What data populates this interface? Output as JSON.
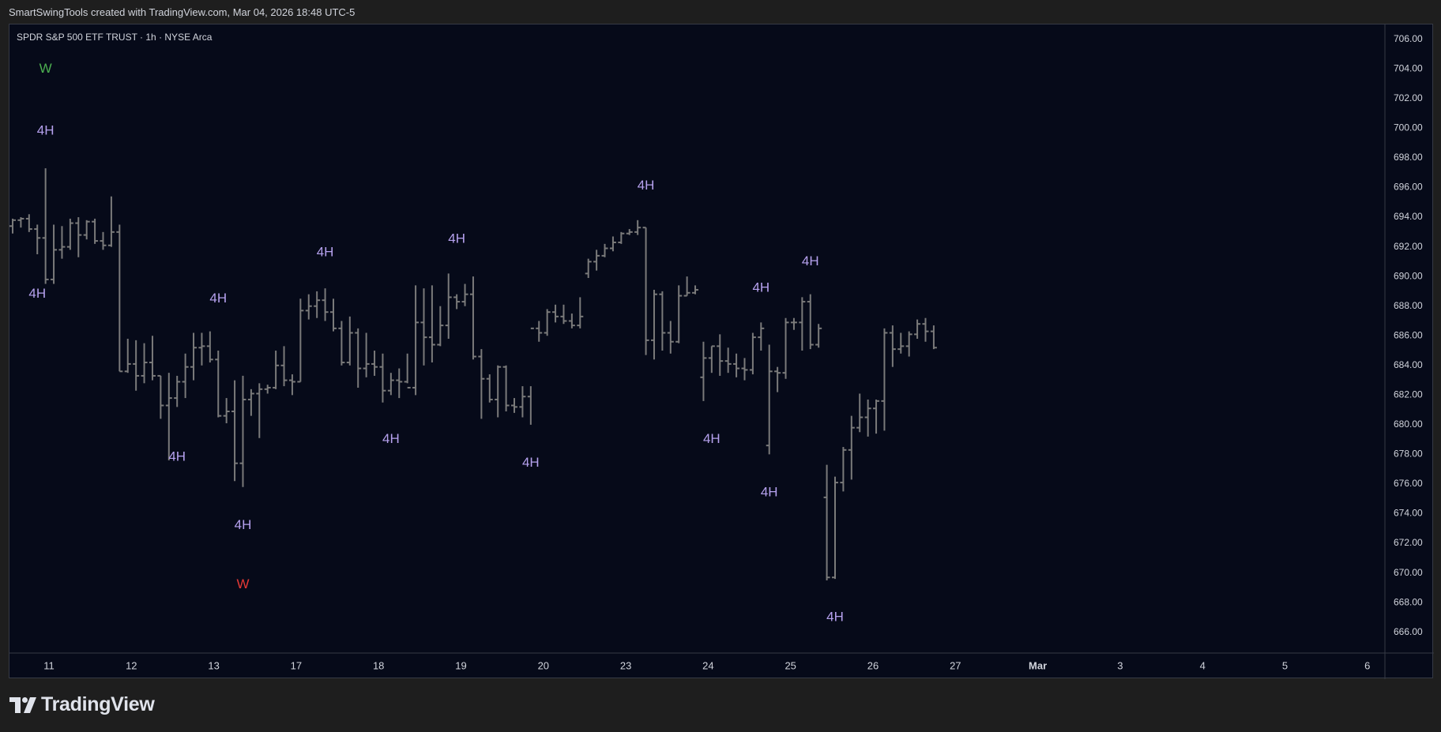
{
  "header": {
    "caption": "SmartSwingTools created with TradingView.com, Mar 04, 2026 18:48 UTC-5"
  },
  "chart": {
    "symbol_title": "SPDR S&P 500 ETF TRUST · 1h · NYSE Arca"
  },
  "brand": {
    "name": "TradingView",
    "logo_icon": "tradingview-logo-icon"
  },
  "colors": {
    "page_bg": "#1e1e1e",
    "chart_bg": "#060a19",
    "bar": "#7a7a7a",
    "label_4h": "#b6a2ef",
    "label_w_high": "#4caf50",
    "label_w_low": "#e53935",
    "text": "#d1d4dc",
    "grid_border": "#363a45"
  },
  "chart_data": {
    "type": "ohlc",
    "title": "SPDR S&P 500 ETF TRUST · 1h · NYSE Arca",
    "xlabel": "",
    "ylabel": "",
    "ylim": [
      664.6,
      707.0
    ],
    "y_ticks": [
      "706.00",
      "704.00",
      "702.00",
      "700.00",
      "698.00",
      "696.00",
      "694.00",
      "692.00",
      "690.00",
      "688.00",
      "686.00",
      "684.00",
      "682.00",
      "680.00",
      "678.00",
      "676.00",
      "674.00",
      "672.00",
      "670.00",
      "668.00",
      "666.00"
    ],
    "x_ticks": [
      "11",
      "12",
      "13",
      "17",
      "18",
      "19",
      "20",
      "23",
      "24",
      "25",
      "26",
      "27",
      "Mar",
      "3",
      "4",
      "5",
      "6"
    ],
    "grid": false,
    "legend": "none",
    "bars": [
      [
        693.4,
        693.9,
        692.9,
        693.8
      ],
      [
        693.8,
        694.0,
        693.3,
        693.9
      ],
      [
        693.9,
        694.2,
        693.0,
        693.2
      ],
      [
        693.2,
        693.5,
        691.5,
        692.6
      ],
      [
        692.6,
        697.3,
        689.5,
        689.8
      ],
      [
        689.8,
        693.5,
        689.5,
        691.8
      ],
      [
        691.8,
        693.4,
        691.2,
        692.0
      ],
      [
        692.0,
        693.9,
        691.8,
        693.6
      ],
      [
        693.6,
        694.0,
        691.3,
        692.8
      ],
      [
        692.8,
        693.8,
        692.5,
        693.7
      ],
      [
        693.7,
        693.9,
        692.2,
        692.4
      ],
      [
        692.4,
        693.0,
        691.8,
        692.1
      ],
      [
        692.1,
        695.4,
        692.0,
        693.0
      ],
      [
        693.0,
        693.5,
        683.6,
        683.6
      ],
      [
        683.6,
        685.8,
        683.5,
        684.1
      ],
      [
        684.1,
        685.7,
        682.3,
        683.3
      ],
      [
        683.3,
        685.5,
        682.8,
        684.2
      ],
      [
        684.2,
        686.0,
        683.0,
        683.3
      ],
      [
        683.3,
        683.3,
        680.4,
        681.3
      ],
      [
        681.3,
        683.5,
        677.6,
        681.8
      ],
      [
        681.8,
        683.3,
        681.2,
        682.9
      ],
      [
        682.9,
        684.8,
        681.8,
        683.9
      ],
      [
        683.9,
        686.2,
        683.0,
        685.2
      ],
      [
        685.2,
        686.2,
        684.0,
        685.3
      ],
      [
        685.3,
        686.3,
        684.2,
        684.4
      ],
      [
        684.4,
        685.0,
        680.5,
        680.6
      ],
      [
        680.6,
        681.8,
        680.1,
        680.9
      ],
      [
        680.9,
        683.0,
        676.2,
        677.4
      ],
      [
        677.4,
        683.3,
        675.8,
        681.7
      ],
      [
        681.7,
        682.4,
        680.6,
        682.1
      ],
      [
        682.1,
        682.8,
        679.1,
        682.4
      ],
      [
        682.4,
        682.7,
        682.1,
        682.5
      ],
      [
        682.5,
        685.0,
        682.4,
        684.0
      ],
      [
        684.0,
        685.3,
        682.6,
        683.0
      ],
      [
        683.0,
        683.4,
        682.0,
        682.9
      ],
      [
        682.9,
        688.5,
        682.9,
        687.7
      ],
      [
        687.7,
        688.8,
        687.1,
        688.0
      ],
      [
        688.0,
        689.0,
        687.2,
        688.4
      ],
      [
        688.4,
        689.2,
        687.0,
        687.6
      ],
      [
        687.6,
        688.5,
        686.3,
        686.5
      ],
      [
        686.5,
        687.0,
        684.0,
        684.2
      ],
      [
        684.2,
        687.3,
        684.0,
        686.2
      ],
      [
        686.2,
        686.5,
        682.5,
        683.8
      ],
      [
        683.8,
        686.2,
        683.2,
        684.1
      ],
      [
        684.1,
        685.0,
        683.3,
        683.9
      ],
      [
        683.9,
        684.8,
        681.5,
        682.3
      ],
      [
        682.3,
        683.5,
        682.0,
        683.0
      ],
      [
        683.0,
        683.8,
        681.8,
        682.9
      ],
      [
        682.9,
        684.8,
        682.8,
        682.5
      ],
      [
        682.5,
        689.4,
        682.0,
        686.9
      ],
      [
        686.9,
        689.2,
        684.0,
        685.9
      ],
      [
        685.9,
        689.4,
        684.2,
        685.4
      ],
      [
        685.4,
        688.0,
        685.3,
        686.7
      ],
      [
        686.7,
        690.2,
        685.8,
        688.6
      ],
      [
        688.6,
        688.8,
        687.8,
        688.3
      ],
      [
        688.3,
        689.5,
        688.0,
        688.8
      ],
      [
        688.8,
        690.0,
        684.4,
        684.6
      ],
      [
        684.6,
        685.1,
        680.4,
        683.1
      ],
      [
        683.1,
        683.4,
        681.5,
        681.7
      ],
      [
        681.7,
        684.0,
        680.5,
        683.9
      ],
      [
        683.9,
        684.0,
        680.9,
        681.3
      ],
      [
        681.3,
        681.8,
        680.8,
        681.2
      ],
      [
        681.2,
        682.6,
        680.5,
        681.9
      ],
      [
        681.9,
        682.6,
        680.0,
        686.5
      ],
      [
        686.5,
        687.0,
        685.6,
        686.2
      ],
      [
        686.2,
        687.8,
        686.0,
        687.6
      ],
      [
        687.6,
        688.1,
        686.9,
        687.3
      ],
      [
        687.3,
        688.1,
        686.8,
        687.0
      ],
      [
        687.0,
        687.5,
        686.5,
        686.7
      ],
      [
        686.7,
        688.6,
        686.5,
        687.3
      ],
      [
        690.2,
        691.2,
        689.9,
        691.0
      ],
      [
        691.0,
        691.8,
        690.4,
        691.4
      ],
      [
        691.4,
        692.2,
        691.3,
        691.9
      ],
      [
        691.9,
        692.7,
        691.7,
        692.3
      ],
      [
        692.3,
        693.0,
        692.2,
        692.9
      ],
      [
        692.9,
        693.2,
        692.8,
        693.0
      ],
      [
        693.0,
        693.8,
        692.8,
        693.3
      ],
      [
        693.3,
        693.3,
        684.7,
        685.7
      ],
      [
        685.7,
        689.1,
        684.4,
        688.8
      ],
      [
        688.8,
        689.0,
        685.0,
        686.2
      ],
      [
        686.2,
        687.0,
        684.8,
        685.6
      ],
      [
        685.6,
        689.4,
        685.5,
        688.7
      ],
      [
        688.7,
        690.0,
        688.7,
        688.9
      ],
      [
        688.9,
        689.4,
        688.8,
        689.1
      ],
      [
        683.2,
        685.6,
        681.6,
        684.5
      ],
      [
        684.5,
        685.3,
        683.5,
        685.3
      ],
      [
        685.3,
        686.1,
        683.3,
        684.3
      ],
      [
        684.3,
        685.2,
        683.5,
        684.1
      ],
      [
        684.1,
        684.8,
        683.2,
        683.8
      ],
      [
        683.8,
        684.5,
        683.0,
        683.7
      ],
      [
        683.7,
        686.2,
        683.4,
        685.9
      ],
      [
        685.9,
        686.9,
        685.0,
        686.5
      ],
      [
        678.6,
        685.4,
        678.0,
        683.6
      ],
      [
        683.6,
        683.9,
        682.2,
        683.5
      ],
      [
        683.5,
        687.2,
        683.1,
        686.9
      ],
      [
        686.9,
        687.2,
        686.4,
        686.9
      ],
      [
        686.9,
        688.6,
        685.0,
        688.3
      ],
      [
        688.3,
        688.8,
        685.1,
        685.4
      ],
      [
        685.4,
        686.8,
        685.2,
        686.5
      ],
      [
        675.1,
        677.3,
        669.5,
        669.7
      ],
      [
        669.7,
        676.5,
        669.6,
        676.1
      ],
      [
        676.1,
        678.5,
        675.5,
        678.3
      ],
      [
        678.3,
        680.6,
        676.3,
        679.8
      ],
      [
        679.8,
        682.1,
        679.5,
        680.5
      ],
      [
        680.5,
        681.7,
        679.2,
        681.1
      ],
      [
        681.1,
        681.7,
        679.4,
        681.6
      ],
      [
        681.6,
        686.5,
        679.6,
        686.2
      ],
      [
        686.2,
        686.7,
        683.9,
        685.1
      ],
      [
        685.1,
        686.2,
        684.8,
        685.3
      ],
      [
        685.3,
        686.3,
        684.6,
        686.1
      ],
      [
        686.1,
        687.1,
        685.8,
        686.8
      ],
      [
        686.8,
        687.2,
        685.6,
        686.3
      ],
      [
        686.3,
        686.7,
        685.1,
        685.2
      ]
    ],
    "annotations": [
      {
        "text": "W",
        "price": 704.0,
        "bar_index": 4,
        "color_key": "label_w_high"
      },
      {
        "text": "4H",
        "price": 699.8,
        "bar_index": 4,
        "color_key": "label_4h"
      },
      {
        "text": "4H",
        "price": 688.8,
        "bar_index": 3,
        "color_key": "label_4h"
      },
      {
        "text": "4H",
        "price": 688.5,
        "bar_index": 25,
        "color_key": "label_4h"
      },
      {
        "text": "4H",
        "price": 677.8,
        "bar_index": 20,
        "color_key": "label_4h"
      },
      {
        "text": "4H",
        "price": 673.2,
        "bar_index": 28,
        "color_key": "label_4h"
      },
      {
        "text": "W",
        "price": 669.2,
        "bar_index": 28,
        "color_key": "label_w_low"
      },
      {
        "text": "4H",
        "price": 691.6,
        "bar_index": 38,
        "color_key": "label_4h"
      },
      {
        "text": "4H",
        "price": 679.0,
        "bar_index": 46,
        "color_key": "label_4h"
      },
      {
        "text": "4H",
        "price": 692.5,
        "bar_index": 54,
        "color_key": "label_4h"
      },
      {
        "text": "4H",
        "price": 677.4,
        "bar_index": 63,
        "color_key": "label_4h"
      },
      {
        "text": "4H",
        "price": 696.1,
        "bar_index": 77,
        "color_key": "label_4h"
      },
      {
        "text": "4H",
        "price": 679.0,
        "bar_index": 85,
        "color_key": "label_4h"
      },
      {
        "text": "4H",
        "price": 689.2,
        "bar_index": 91,
        "color_key": "label_4h"
      },
      {
        "text": "4H",
        "price": 675.4,
        "bar_index": 92,
        "color_key": "label_4h"
      },
      {
        "text": "4H",
        "price": 691.0,
        "bar_index": 97,
        "color_key": "label_4h"
      },
      {
        "text": "4H",
        "price": 667.0,
        "bar_index": 100,
        "color_key": "label_4h"
      }
    ]
  }
}
